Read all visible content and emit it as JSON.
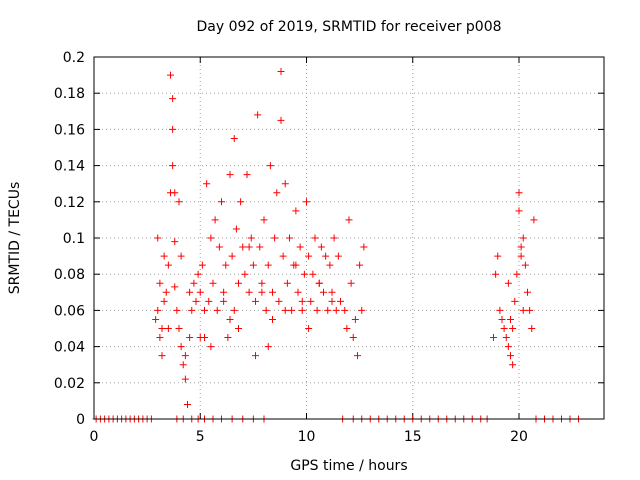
{
  "chart_data": {
    "type": "scatter",
    "title": "Day 092 of 2019, SRMTID for receiver p008",
    "xlabel": "GPS time / hours",
    "ylabel": "SRMTID / TECUs",
    "xlim": [
      0,
      24
    ],
    "ylim": [
      0,
      0.2
    ],
    "x_ticks": [
      0,
      5,
      10,
      15,
      20
    ],
    "x_tick_labels": [
      "0",
      "5",
      "10",
      "15",
      "20"
    ],
    "y_ticks": [
      0,
      0.02,
      0.04,
      0.06,
      0.08,
      0.1,
      0.12,
      0.14,
      0.16,
      0.18,
      0.2
    ],
    "y_tick_labels": [
      "0",
      "0.02",
      "0.04",
      "0.06",
      "0.08",
      "0.1",
      "0.12",
      "0.14",
      "0.16",
      "0.18",
      "0.2"
    ],
    "grid": true,
    "marker": "+",
    "series": [
      {
        "name": "SRMTID",
        "color": "#ff0000",
        "x": [
          0.1,
          0.3,
          0.5,
          0.7,
          0.9,
          1.1,
          1.3,
          1.5,
          1.7,
          1.9,
          2.1,
          2.3,
          2.5,
          2.7,
          3.9,
          4.2,
          4.6,
          4.9,
          5.2,
          5.6,
          6.0,
          6.5,
          7.0,
          7.5,
          8.0,
          11.7,
          12.2,
          12.6,
          13.0,
          13.4,
          13.8,
          14.2,
          14.6,
          15.0,
          15.4,
          15.8,
          16.2,
          16.6,
          17.0,
          17.4,
          17.8,
          18.2,
          18.5,
          20.8,
          21.2,
          21.6,
          22.0,
          22.4,
          22.8,
          2.9,
          3.0,
          3.0,
          3.1,
          3.1,
          3.2,
          3.2,
          3.3,
          3.3,
          3.4,
          3.5,
          3.5,
          3.6,
          3.6,
          3.7,
          3.7,
          3.7,
          3.8,
          3.8,
          3.8,
          3.9,
          4.0,
          4.0,
          4.1,
          4.1,
          4.2,
          4.3,
          4.3,
          4.4,
          4.5,
          4.5,
          4.6,
          4.7,
          4.8,
          4.9,
          5.0,
          5.0,
          5.1,
          5.2,
          5.3,
          5.4,
          5.5,
          5.5,
          5.6,
          5.7,
          5.8,
          5.9,
          6.0,
          6.1,
          6.2,
          6.3,
          6.4,
          6.5,
          6.6,
          6.6,
          6.7,
          6.8,
          6.9,
          7.0,
          7.1,
          7.2,
          7.3,
          7.4,
          7.5,
          7.6,
          7.7,
          7.8,
          7.9,
          8.0,
          8.1,
          8.2,
          8.3,
          8.4,
          8.5,
          8.6,
          8.7,
          8.8,
          8.8,
          8.9,
          9.0,
          9.1,
          9.2,
          9.3,
          9.4,
          9.5,
          9.6,
          9.7,
          9.8,
          9.9,
          10.0,
          10.1,
          10.2,
          10.3,
          10.4,
          10.5,
          10.6,
          10.7,
          10.8,
          10.9,
          11.0,
          11.1,
          11.2,
          11.3,
          11.4,
          11.5,
          11.6,
          11.8,
          11.9,
          12.0,
          12.1,
          12.2,
          12.3,
          12.4,
          12.5,
          12.6,
          12.7,
          5.2,
          6.1,
          6.8,
          7.3,
          7.9,
          8.4,
          9.0,
          9.5,
          10.1,
          10.6,
          11.2,
          7.6,
          8.2,
          6.4,
          9.8,
          18.8,
          18.9,
          19.0,
          19.1,
          19.2,
          19.3,
          19.4,
          19.5,
          19.6,
          19.7,
          19.8,
          19.9,
          20.0,
          20.0,
          20.1,
          20.2,
          20.3,
          20.4,
          20.5,
          20.6,
          20.7,
          19.5,
          19.6,
          19.7,
          20.1,
          20.2
        ],
        "y": [
          0,
          0,
          0,
          0,
          0,
          0,
          0,
          0,
          0,
          0,
          0,
          0,
          0,
          0,
          0,
          0,
          0,
          0,
          0,
          0,
          0,
          0,
          0,
          0,
          0,
          0,
          0,
          0,
          0,
          0,
          0,
          0,
          0,
          0,
          0,
          0,
          0,
          0,
          0,
          0,
          0,
          0,
          0,
          0,
          0,
          0,
          0,
          0,
          0,
          0.055,
          0.1,
          0.06,
          0.045,
          0.075,
          0.05,
          0.035,
          0.065,
          0.09,
          0.07,
          0.085,
          0.05,
          0.125,
          0.19,
          0.177,
          0.16,
          0.14,
          0.125,
          0.098,
          0.073,
          0.06,
          0.12,
          0.05,
          0.09,
          0.04,
          0.03,
          0.035,
          0.022,
          0.008,
          0.045,
          0.07,
          0.06,
          0.075,
          0.065,
          0.08,
          0.07,
          0.045,
          0.085,
          0.06,
          0.13,
          0.065,
          0.1,
          0.04,
          0.075,
          0.11,
          0.06,
          0.095,
          0.12,
          0.07,
          0.085,
          0.045,
          0.135,
          0.09,
          0.155,
          0.06,
          0.105,
          0.075,
          0.12,
          0.095,
          0.08,
          0.135,
          0.07,
          0.1,
          0.085,
          0.065,
          0.168,
          0.095,
          0.075,
          0.11,
          0.06,
          0.085,
          0.14,
          0.07,
          0.1,
          0.125,
          0.065,
          0.192,
          0.165,
          0.09,
          0.13,
          0.075,
          0.1,
          0.06,
          0.085,
          0.115,
          0.07,
          0.095,
          0.065,
          0.08,
          0.12,
          0.09,
          0.065,
          0.08,
          0.1,
          0.06,
          0.075,
          0.095,
          0.07,
          0.09,
          0.06,
          0.085,
          0.07,
          0.1,
          0.06,
          0.09,
          0.065,
          0.06,
          0.05,
          0.11,
          0.075,
          0.045,
          0.055,
          0.035,
          0.085,
          0.06,
          0.095,
          0.045,
          0.065,
          0.05,
          0.095,
          0.07,
          0.055,
          0.06,
          0.085,
          0.05,
          0.075,
          0.065,
          0.035,
          0.04,
          0.055,
          0.06,
          0.045,
          0.08,
          0.09,
          0.06,
          0.055,
          0.05,
          0.045,
          0.04,
          0.035,
          0.03,
          0.065,
          0.08,
          0.115,
          0.125,
          0.09,
          0.1,
          0.085,
          0.07,
          0.06,
          0.05,
          0.11,
          0.075,
          0.055,
          0.05,
          0.095,
          0.06
        ]
      }
    ]
  }
}
